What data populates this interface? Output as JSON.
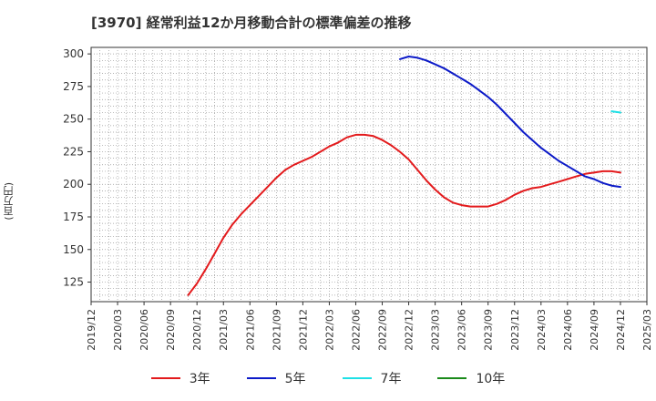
{
  "chart_data": {
    "type": "line",
    "title": "[3970]  経常利益12か月移動合計の標準偏差の推移",
    "ylabel": "(百万円)",
    "xlabel": "",
    "ylim": [
      110,
      305
    ],
    "yticks": [
      125,
      150,
      175,
      200,
      225,
      250,
      275,
      300
    ],
    "x_ticks": [
      "2019/12",
      "2020/03",
      "2020/06",
      "2020/09",
      "2020/12",
      "2021/03",
      "2021/06",
      "2021/09",
      "2021/12",
      "2022/03",
      "2022/06",
      "2022/09",
      "2022/12",
      "2023/03",
      "2023/06",
      "2023/09",
      "2023/12",
      "2024/03",
      "2024/06",
      "2024/09",
      "2024/12",
      "2025/03"
    ],
    "grid": true,
    "legend_position": "bottom",
    "series": [
      {
        "name": "3年",
        "color": "#e31a1c",
        "x": [
          "2020/11",
          "2020/12",
          "2021/01",
          "2021/02",
          "2021/03",
          "2021/04",
          "2021/05",
          "2021/06",
          "2021/07",
          "2021/08",
          "2021/09",
          "2021/10",
          "2021/11",
          "2021/12",
          "2022/01",
          "2022/02",
          "2022/03",
          "2022/04",
          "2022/05",
          "2022/06",
          "2022/07",
          "2022/08",
          "2022/09",
          "2022/10",
          "2022/11",
          "2022/12",
          "2023/01",
          "2023/02",
          "2023/03",
          "2023/04",
          "2023/05",
          "2023/06",
          "2023/07",
          "2023/08",
          "2023/09",
          "2023/10",
          "2023/11",
          "2023/12",
          "2024/01",
          "2024/02",
          "2024/03",
          "2024/04",
          "2024/05",
          "2024/06",
          "2024/07",
          "2024/08",
          "2024/09",
          "2024/10",
          "2024/11",
          "2024/12"
        ],
        "values": [
          115,
          124,
          135,
          147,
          159,
          169,
          177,
          184,
          191,
          198,
          205,
          211,
          215,
          218,
          221,
          225,
          229,
          232,
          236,
          238,
          238,
          237,
          234,
          230,
          225,
          219,
          211,
          203,
          196,
          190,
          186,
          184,
          183,
          183,
          183,
          185,
          188,
          192,
          195,
          197,
          198,
          200,
          202,
          204,
          206,
          208,
          209,
          210,
          210,
          209
        ]
      },
      {
        "name": "5年",
        "color": "#0c1ac8",
        "x": [
          "2022/11",
          "2022/12",
          "2023/01",
          "2023/02",
          "2023/03",
          "2023/04",
          "2023/05",
          "2023/06",
          "2023/07",
          "2023/08",
          "2023/09",
          "2023/10",
          "2023/11",
          "2023/12",
          "2024/01",
          "2024/02",
          "2024/03",
          "2024/04",
          "2024/05",
          "2024/06",
          "2024/07",
          "2024/08",
          "2024/09",
          "2024/10",
          "2024/11",
          "2024/12"
        ],
        "values": [
          296,
          298,
          297,
          295,
          292,
          289,
          285,
          281,
          277,
          272,
          267,
          261,
          254,
          247,
          240,
          234,
          228,
          223,
          218,
          214,
          210,
          206,
          204,
          201,
          199,
          198
        ]
      },
      {
        "name": "7年",
        "color": "#1ee0e6",
        "x": [
          "2024/11",
          "2024/12"
        ],
        "values": [
          256,
          255
        ]
      },
      {
        "name": "10年",
        "color": "#1a8a1a",
        "x": [],
        "values": []
      }
    ]
  }
}
